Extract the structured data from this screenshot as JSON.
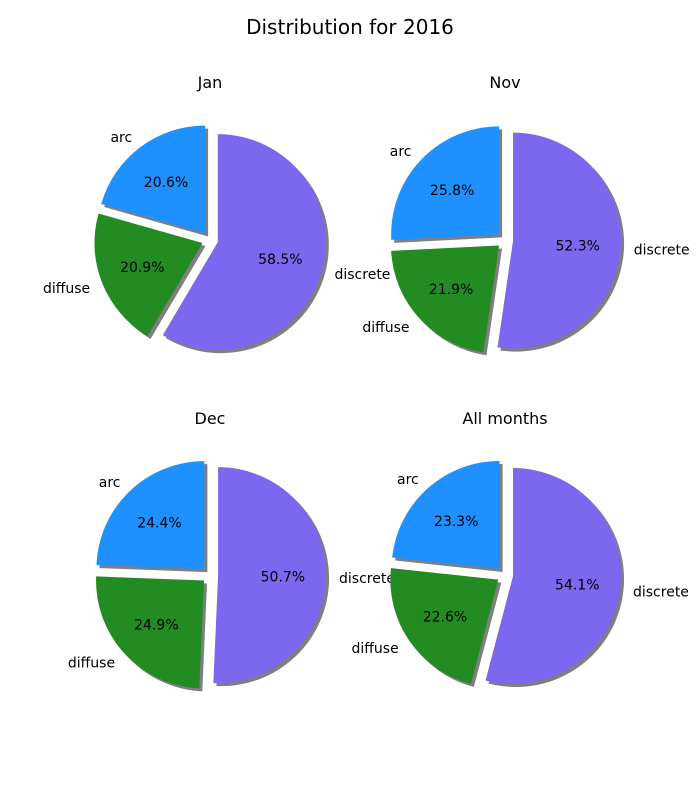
{
  "figure": {
    "title": "Distribution for 2016"
  },
  "colors": {
    "arc": "#1E90FF",
    "diffuse": "#228B22",
    "discrete": "#7B68EE",
    "shadow": "#7f7f7f",
    "text": "#000000"
  },
  "chart_data": [
    {
      "type": "pie",
      "title": "Jan",
      "labels": [
        "arc",
        "diffuse",
        "discrete"
      ],
      "values": [
        20.6,
        20.9,
        58.5
      ],
      "value_labels": [
        "20.6%",
        "20.9%",
        "58.5%"
      ],
      "explode": [
        0.05,
        0.05,
        0.05
      ],
      "shadow": true,
      "start_angle": 90
    },
    {
      "type": "pie",
      "title": "Nov",
      "labels": [
        "arc",
        "diffuse",
        "discrete"
      ],
      "values": [
        25.8,
        21.9,
        52.3
      ],
      "value_labels": [
        "25.8%",
        "21.9%",
        "52.3%"
      ],
      "explode": [
        0.05,
        0.05,
        0.05
      ],
      "shadow": true,
      "start_angle": 90
    },
    {
      "type": "pie",
      "title": "Dec",
      "labels": [
        "arc",
        "diffuse",
        "discrete"
      ],
      "values": [
        24.4,
        24.9,
        50.7
      ],
      "value_labels": [
        "24.4%",
        "24.9%",
        "50.7%"
      ],
      "explode": [
        0.05,
        0.05,
        0.05
      ],
      "shadow": true,
      "start_angle": 90
    },
    {
      "type": "pie",
      "title": "All months",
      "labels": [
        "arc",
        "diffuse",
        "discrete"
      ],
      "values": [
        23.3,
        22.6,
        54.1
      ],
      "value_labels": [
        "23.3%",
        "22.6%",
        "54.1%"
      ],
      "explode": [
        0.05,
        0.05,
        0.05
      ],
      "shadow": true,
      "start_angle": 90
    }
  ]
}
